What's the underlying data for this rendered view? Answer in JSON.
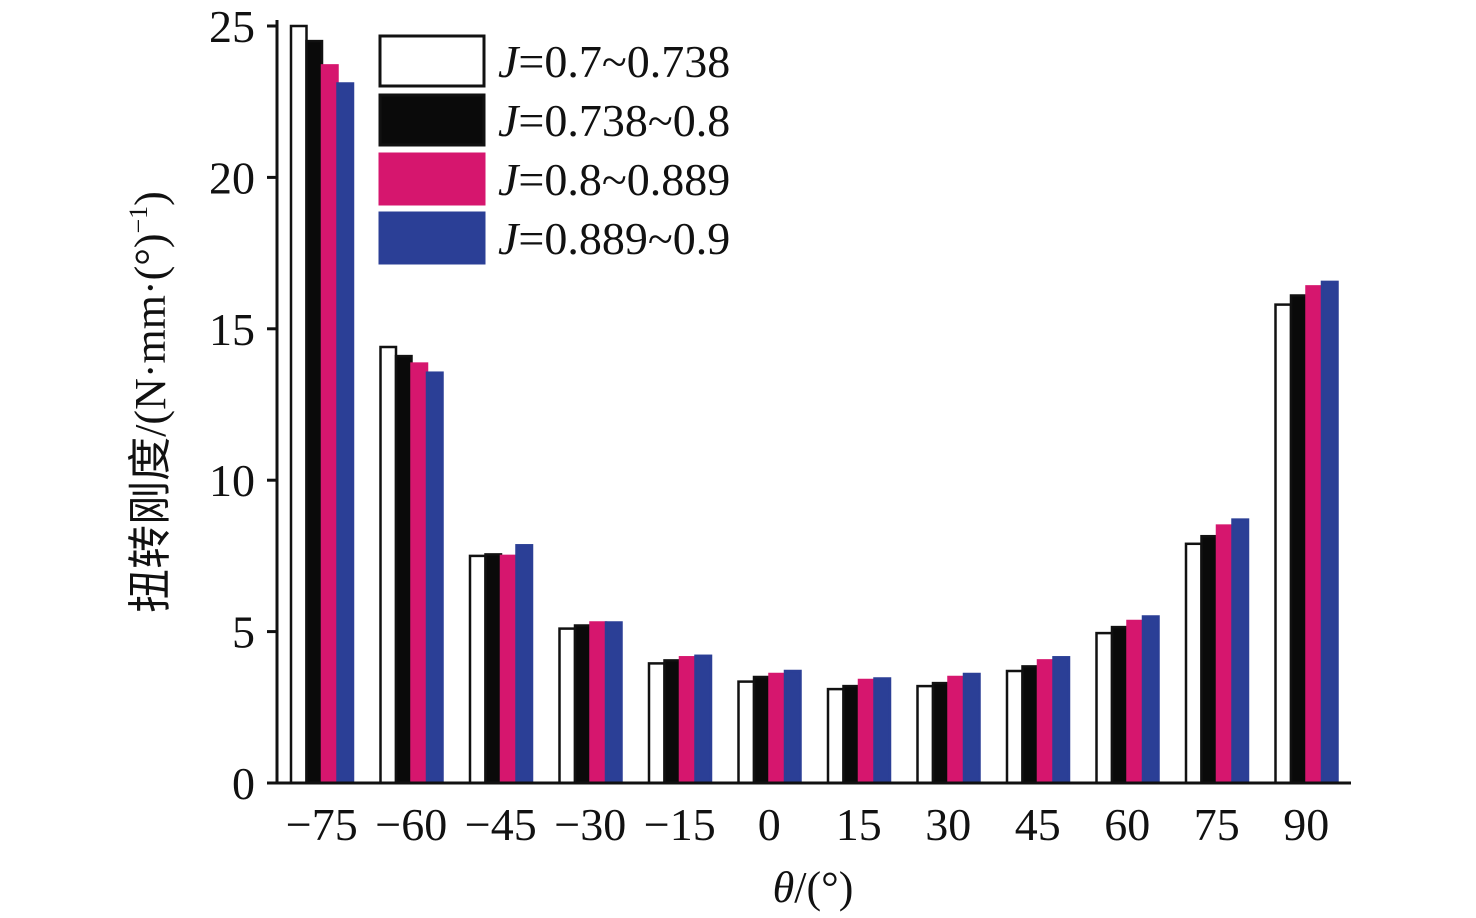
{
  "chart_data": {
    "type": "bar",
    "title": "",
    "xlabel_var": "θ",
    "xlabel_unit": "/(°)",
    "ylabel": "扭转刚度/(N·mm·(°)",
    "ylabel_sup": "−1",
    "ylabel_close": ")",
    "ylim": [
      0,
      25
    ],
    "yticks": [
      "0",
      "5",
      "10",
      "15",
      "20",
      "25"
    ],
    "categories": [
      "−75",
      "−60",
      "−45",
      "−30",
      "−15",
      "0",
      "15",
      "30",
      "45",
      "60",
      "75",
      "90"
    ],
    "legend_placement": "top-left",
    "series": [
      {
        "name": "=0.7~0.738",
        "var": "J",
        "color": "#ffffff",
        "stroke": "#111111",
        "values": [
          25.0,
          14.4,
          7.5,
          5.1,
          3.95,
          3.35,
          3.1,
          3.2,
          3.7,
          4.95,
          7.9,
          15.8
        ]
      },
      {
        "name": "=0.738~0.8",
        "var": "J",
        "color": "#0a0a0a",
        "stroke": "#111111",
        "values": [
          24.5,
          14.1,
          7.55,
          5.2,
          4.05,
          3.5,
          3.2,
          3.3,
          3.85,
          5.15,
          8.15,
          16.1
        ]
      },
      {
        "name": "=0.8~0.889",
        "var": "J",
        "color": "#d6166e",
        "stroke": "#d6166e",
        "values": [
          23.7,
          13.85,
          7.5,
          5.3,
          4.15,
          3.6,
          3.4,
          3.5,
          4.05,
          5.35,
          8.5,
          16.4
        ]
      },
      {
        "name": "=0.889~0.9",
        "var": "J",
        "color": "#2b3f96",
        "stroke": "#2b3f96",
        "values": [
          23.1,
          13.55,
          7.85,
          5.3,
          4.2,
          3.7,
          3.45,
          3.6,
          4.15,
          5.5,
          8.7,
          16.55
        ]
      }
    ]
  }
}
